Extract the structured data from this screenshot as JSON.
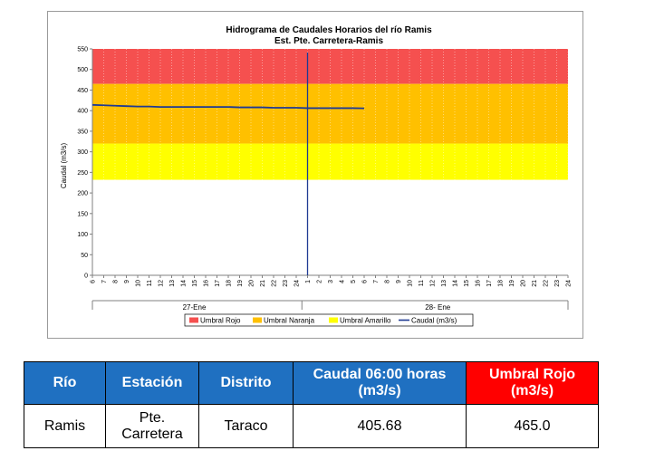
{
  "chart_data": {
    "type": "line",
    "title": "Hidrograma de Caudales Horarios del río Ramis",
    "subtitle": "Est. Pte. Carretera-Ramis",
    "ylabel": "Caudal  (m3/s)",
    "ylim": [
      0,
      550
    ],
    "yticks": [
      0,
      50,
      100,
      150,
      200,
      250,
      300,
      350,
      400,
      450,
      500,
      550
    ],
    "xticks": [
      "6",
      "7",
      "8",
      "9",
      "10",
      "11",
      "12",
      "13",
      "14",
      "15",
      "16",
      "17",
      "18",
      "19",
      "20",
      "21",
      "22",
      "23",
      "24",
      "1",
      "2",
      "3",
      "4",
      "5",
      "6",
      "7",
      "8",
      "9",
      "10",
      "11",
      "12",
      "13",
      "14",
      "15",
      "16",
      "17",
      "18",
      "19",
      "20",
      "21",
      "22",
      "23",
      "24"
    ],
    "date_groups": [
      {
        "label": "27-Ene",
        "start": 0,
        "end": 18
      },
      {
        "label": "28- Ene",
        "start": 19,
        "end": 42
      }
    ],
    "current_time_index": 19,
    "bands": [
      {
        "name": "Umbral Rojo",
        "from": 465,
        "to": 550,
        "color": "#f5504f"
      },
      {
        "name": "Umbral Naranja",
        "from": 320,
        "to": 465,
        "color": "#ffc000"
      },
      {
        "name": "Umbral Amarillo",
        "from": 232,
        "to": 320,
        "color": "#ffff00"
      }
    ],
    "series": [
      {
        "name": "Caudal (m3/s)",
        "color": "#1f3a93",
        "x": [
          0,
          1,
          2,
          3,
          4,
          5,
          6,
          7,
          8,
          9,
          10,
          11,
          12,
          13,
          14,
          15,
          16,
          17,
          18,
          19,
          20,
          21,
          22,
          23,
          24
        ],
        "values": [
          414,
          413,
          412,
          411,
          410,
          410,
          409,
          409,
          409,
          409,
          409,
          409,
          409,
          408,
          408,
          408,
          407,
          407,
          407,
          406,
          406,
          406,
          406,
          406,
          405.68
        ]
      }
    ],
    "legend": {
      "position": "bottom",
      "entries": [
        "Umbral Rojo",
        "Umbral Naranja",
        "Umbral Amarillo",
        "Caudal (m3/s)"
      ]
    }
  },
  "table": {
    "headers": [
      "Río",
      "Estación",
      "Distrito",
      "Caudal  06:00 horas (m3/s)",
      "Umbral Rojo (m3/s)"
    ],
    "row": [
      "Ramis",
      "Pte. Carretera",
      "Taraco",
      "405.68",
      "465.0"
    ]
  }
}
